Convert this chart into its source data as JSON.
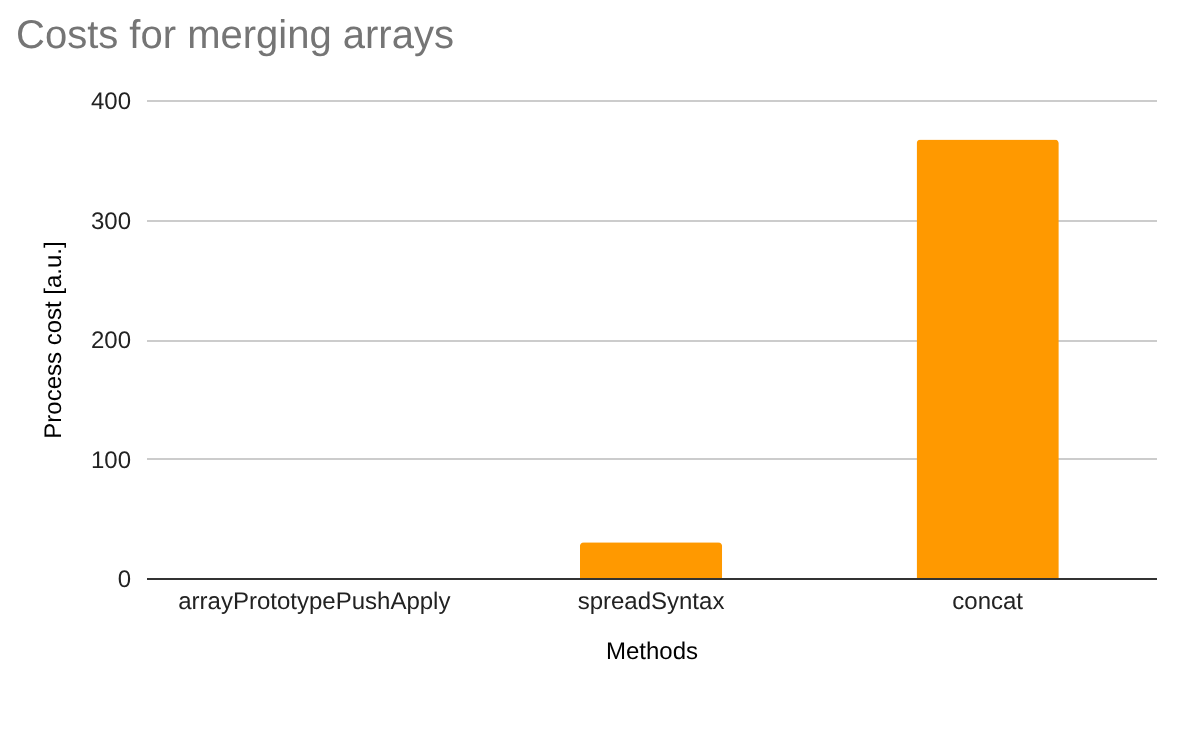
{
  "chart_data": {
    "type": "bar",
    "title": "Costs for merging arrays",
    "xlabel": "Methods",
    "ylabel": "Process cost [a.u.]",
    "categories": [
      "arrayPrototypePushApply",
      "spreadSyntax",
      "concat"
    ],
    "values": [
      0,
      30,
      367
    ],
    "color": "#ff9900",
    "ylim": [
      0,
      400
    ],
    "yticks": [
      0,
      100,
      200,
      300,
      400
    ],
    "grid": "y"
  }
}
